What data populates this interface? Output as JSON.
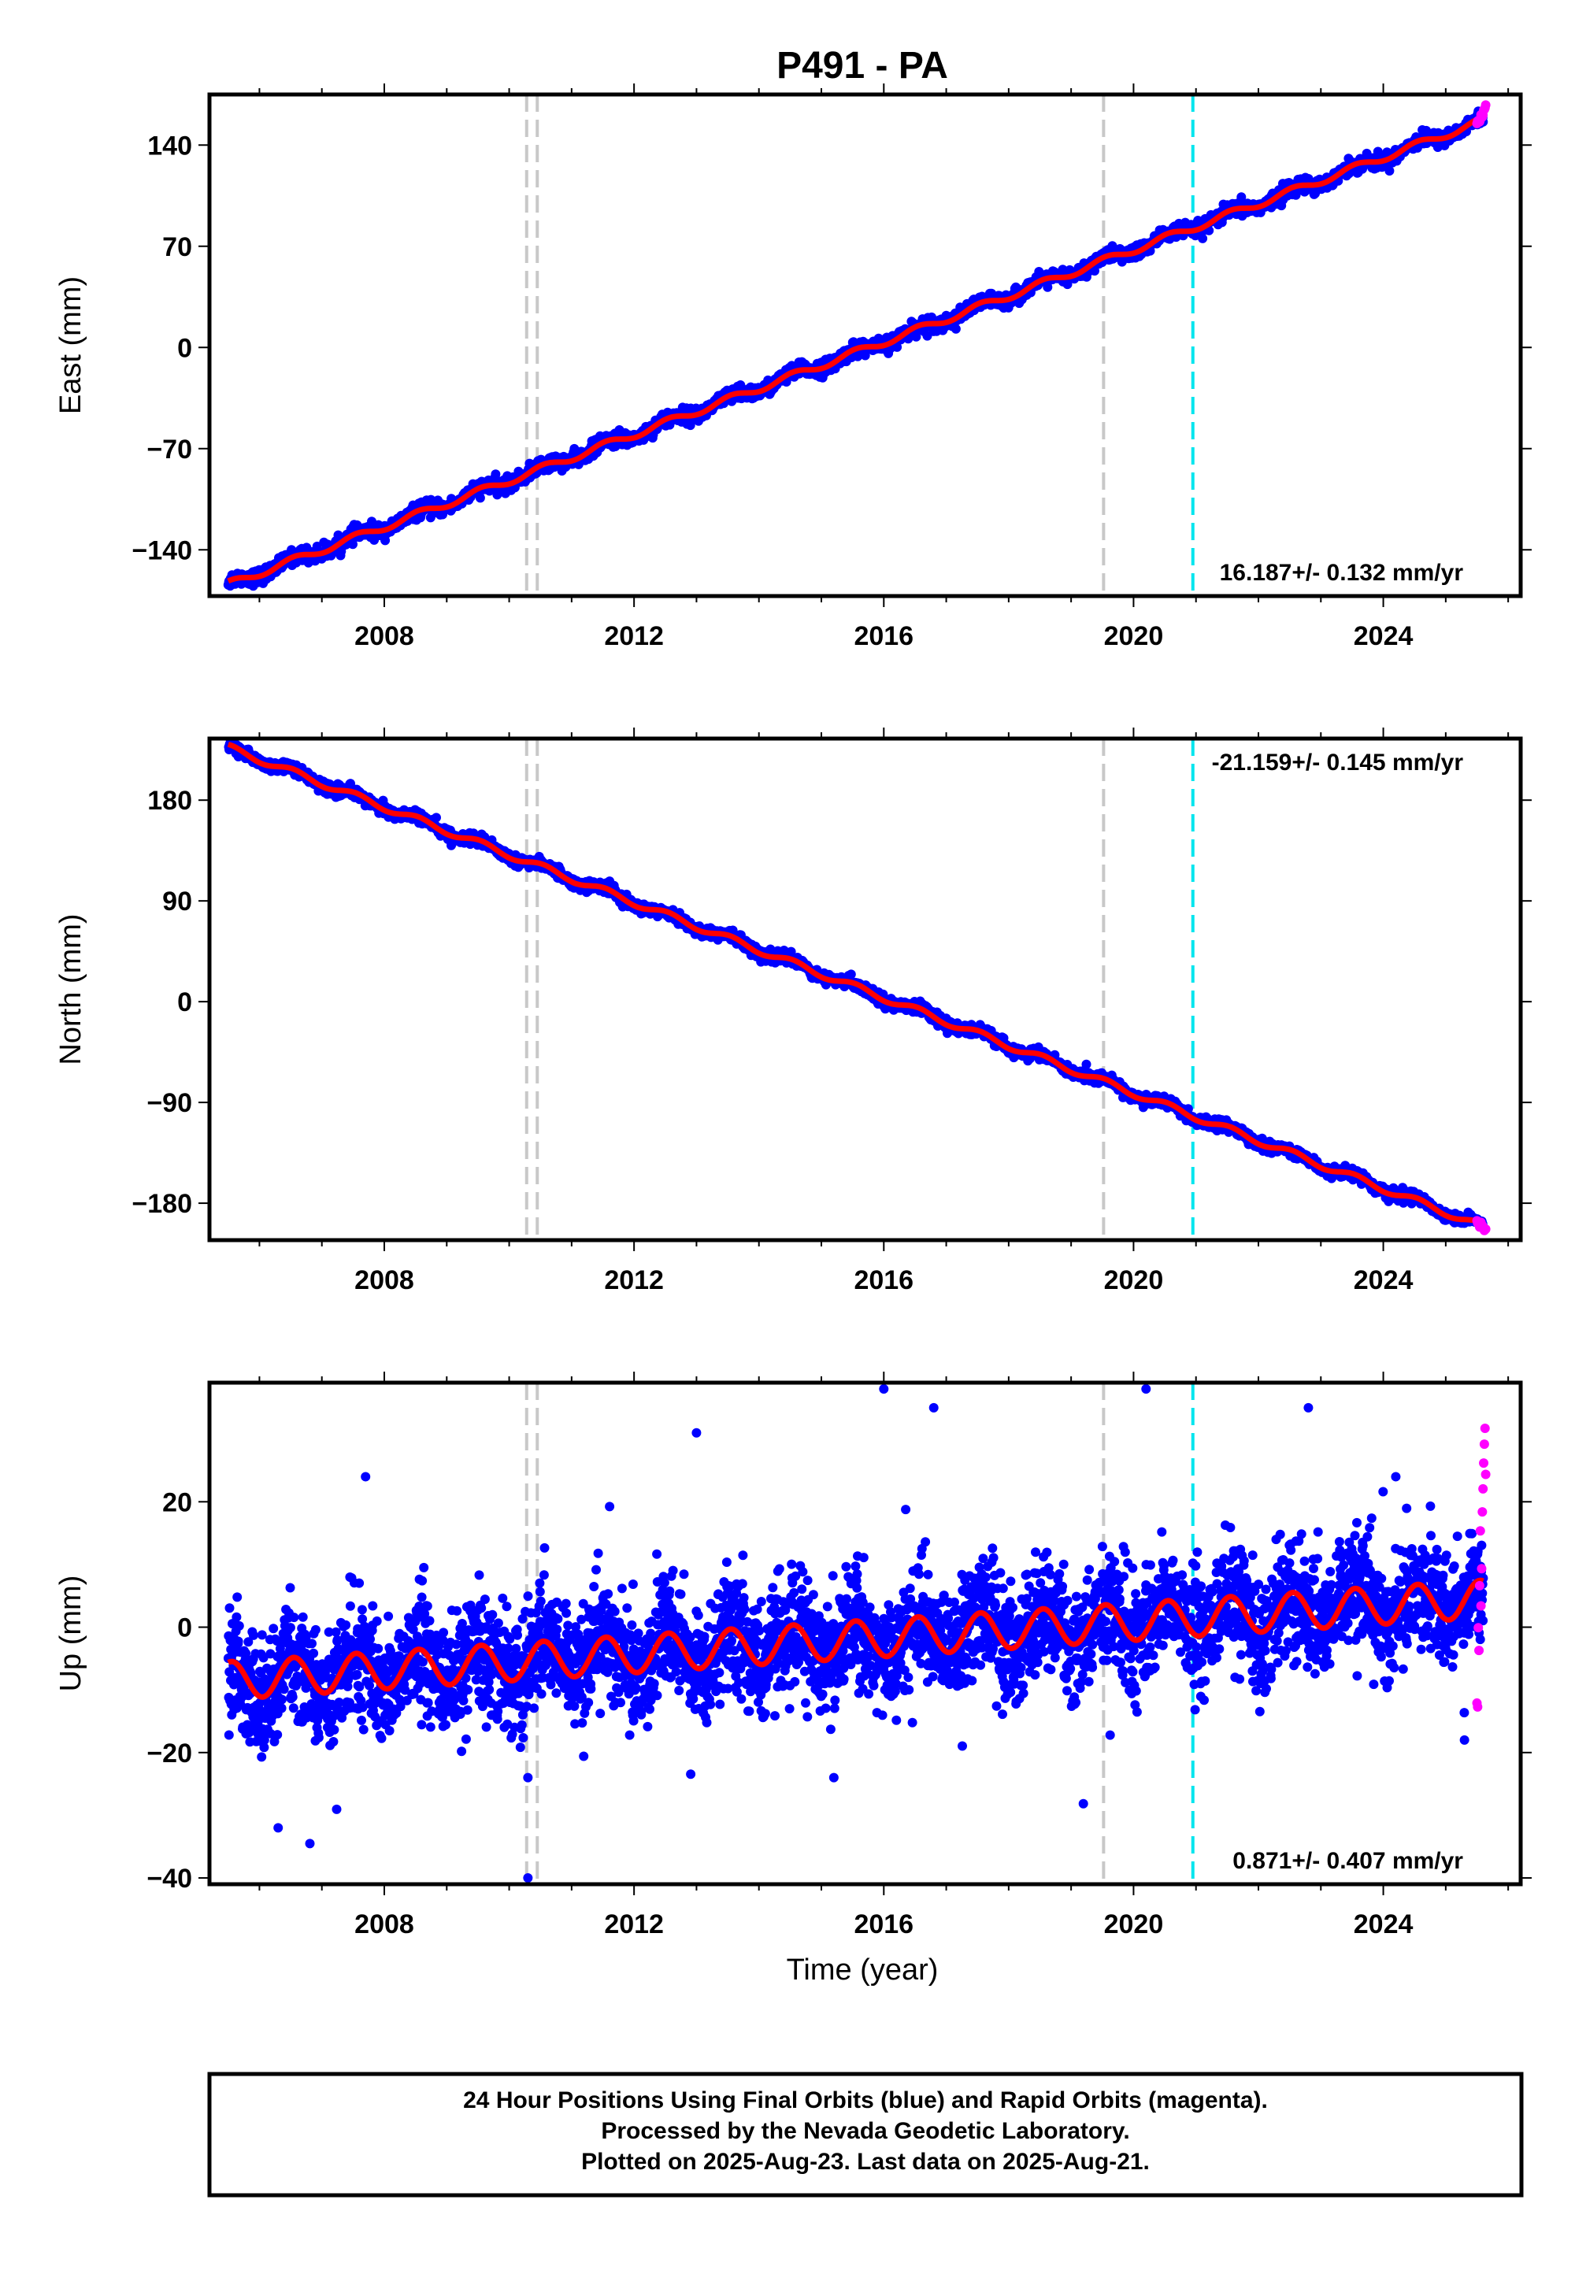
{
  "title": "P491 - PA",
  "x_axis_label": "Time (year)",
  "footer": {
    "line1": "24 Hour Positions Using Final Orbits (blue) and Rapid Orbits (magenta).",
    "line2": "Processed by the Nevada Geodetic Laboratory.",
    "line3": "Plotted on 2025-Aug-23. Last data on 2025-Aug-21."
  },
  "colors": {
    "final_orbits": "#0000ff",
    "rapid_orbits": "#ff00ff",
    "model_fit": "#ff0000",
    "equipment_change": "#c8c8c8",
    "event_marker": "#00e5ee"
  },
  "chart_data": [
    {
      "type": "scatter",
      "id": "east",
      "ylabel": "East (mm)",
      "xlim": [
        2005.2,
        2026.2
      ],
      "ylim": [
        -172,
        175
      ],
      "xticks": [
        2008,
        2012,
        2016,
        2020,
        2024
      ],
      "xtick_labels": [
        "2008",
        "2012",
        "2016",
        "2020",
        "2024"
      ],
      "yticks": [
        -140,
        -70,
        0,
        70,
        140
      ],
      "ytick_labels": [
        "−140",
        "−70",
        "0",
        "70",
        "140"
      ],
      "rate_label": "16.187+/- 0.132 mm/yr",
      "rate_position": "bottom-right",
      "trend": {
        "x0": 2005.5,
        "y0": -164,
        "x1": 2025.6,
        "y1": 157,
        "seasonal_amplitude": 2.5,
        "scatter_sd": 2.5
      },
      "rapid_points": {
        "x_start": 2025.5,
        "x_end": 2025.64,
        "y_start": 153,
        "y_end": 168
      },
      "vertical_lines": [
        {
          "x": 2010.28,
          "kind": "equipment"
        },
        {
          "x": 2010.45,
          "kind": "equipment"
        },
        {
          "x": 2019.52,
          "kind": "equipment"
        },
        {
          "x": 2020.95,
          "kind": "event"
        }
      ]
    },
    {
      "type": "scatter",
      "id": "north",
      "ylabel": "North (mm)",
      "xlim": [
        2005.2,
        2026.2
      ],
      "ylim": [
        -213,
        235
      ],
      "xticks": [
        2008,
        2012,
        2016,
        2020,
        2024
      ],
      "xtick_labels": [
        "2008",
        "2012",
        "2016",
        "2020",
        "2024"
      ],
      "yticks": [
        -180,
        -90,
        0,
        90,
        180
      ],
      "ytick_labels": [
        "−180",
        "−90",
        "0",
        "90",
        "180"
      ],
      "rate_label": "-21.159+/- 0.145 mm/yr",
      "rate_position": "top-right",
      "trend": {
        "x0": 2005.5,
        "y0": 227,
        "x1": 2025.6,
        "y1": -201,
        "seasonal_amplitude": 3,
        "scatter_sd": 2.5
      },
      "rapid_points": {
        "x_start": 2025.5,
        "x_end": 2025.64,
        "y_start": -197,
        "y_end": -204
      },
      "vertical_lines": [
        {
          "x": 2010.28,
          "kind": "equipment"
        },
        {
          "x": 2010.45,
          "kind": "equipment"
        },
        {
          "x": 2019.52,
          "kind": "equipment"
        },
        {
          "x": 2020.95,
          "kind": "event"
        }
      ]
    },
    {
      "type": "scatter",
      "id": "up",
      "ylabel": "Up (mm)",
      "xlim": [
        2005.2,
        2026.2
      ],
      "ylim": [
        -41,
        39
      ],
      "xticks": [
        2008,
        2012,
        2016,
        2020,
        2024
      ],
      "xtick_labels": [
        "2008",
        "2012",
        "2016",
        "2020",
        "2024"
      ],
      "yticks": [
        -40,
        -20,
        0,
        20
      ],
      "ytick_labels": [
        "−40",
        "−20",
        "0",
        "20"
      ],
      "rate_label": "0.871+/- 0.407 mm/yr",
      "rate_position": "bottom-right",
      "trend": {
        "x0": 2005.5,
        "y0": -8.5,
        "x1": 2025.6,
        "y1": 4.5,
        "seasonal_amplitude": 3,
        "scatter_sd": 4.5
      },
      "rapid_points": {
        "x_start": 2025.5,
        "x_end": 2025.64,
        "y_start": -8,
        "y_end": 33
      },
      "outliers": [
        {
          "x": 2006.3,
          "y": -32
        },
        {
          "x": 2010.3,
          "y": -40
        },
        {
          "x": 2015.2,
          "y": -24
        },
        {
          "x": 2016.0,
          "y": 38
        },
        {
          "x": 2020.2,
          "y": 38
        },
        {
          "x": 2016.8,
          "y": 35
        },
        {
          "x": 2022.8,
          "y": 35
        },
        {
          "x": 2013.0,
          "y": 31
        },
        {
          "x": 2007.7,
          "y": 24
        },
        {
          "x": 2024.2,
          "y": 24
        },
        {
          "x": 2025.3,
          "y": -18
        },
        {
          "x": 2010.3,
          "y": -24
        }
      ],
      "vertical_lines": [
        {
          "x": 2010.28,
          "kind": "equipment"
        },
        {
          "x": 2010.45,
          "kind": "equipment"
        },
        {
          "x": 2019.52,
          "kind": "equipment"
        },
        {
          "x": 2020.95,
          "kind": "event"
        }
      ]
    }
  ]
}
